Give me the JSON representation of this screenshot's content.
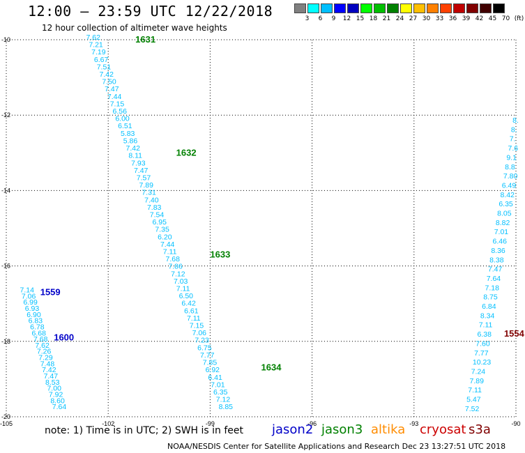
{
  "header": {
    "title": "12:00 – 23:59 UTC 12/22/2018",
    "subtitle": "12 hour collection of altimeter wave heights"
  },
  "legend": {
    "colors": [
      "#808080",
      "#00ffff",
      "#00bfff",
      "#0000ff",
      "#0000bf",
      "#00ff00",
      "#00bf00",
      "#008000",
      "#ffff00",
      "#ffbf00",
      "#ff8000",
      "#ff4000",
      "#c00000",
      "#800000",
      "#400000",
      "#000000"
    ],
    "labels": [
      "",
      "3",
      "6",
      "9",
      "12",
      "15",
      "18",
      "21",
      "24",
      "27",
      "30",
      "33",
      "36",
      "39",
      "42",
      "45",
      "70",
      "(ft)"
    ]
  },
  "footer": {
    "note": "note:  1) Time is in UTC;  2) SWH is in feet",
    "satellites": [
      {
        "name": "jason2",
        "color": "#0000c8"
      },
      {
        "name": "jason3",
        "color": "#008000"
      },
      {
        "name": "altika",
        "color": "#ff8c00"
      },
      {
        "name": "cryosat",
        "color": "#cc0000"
      },
      {
        "name": "s3a",
        "color": "#800000"
      }
    ],
    "credit": "NOAA/NESDIS Center for Satellite Applications and Research     Dec 23 13:27:51 UTC 2018"
  },
  "map": {
    "lon_range": [
      -105,
      -90
    ],
    "lat_range": [
      -20,
      -10
    ],
    "lon_ticks": [
      "-105",
      "-102",
      "-99",
      "-96",
      "-93",
      "-90"
    ],
    "lat_ticks": [
      "-10",
      "-12",
      "-14",
      "-16",
      "-18",
      "-20"
    ],
    "grid": true,
    "tracks": [
      {
        "color": "#00bfff",
        "pass_labels": [
          {
            "text": "1631",
            "color": "#008000",
            "lon": -101.2,
            "lat": -10.0
          },
          {
            "text": "1632",
            "color": "#008000",
            "lon": -100.0,
            "lat": -13.0
          },
          {
            "text": "1633",
            "color": "#008000",
            "lon": -99.0,
            "lat": -15.7
          },
          {
            "text": "1634",
            "color": "#008000",
            "lon": -97.5,
            "lat": -18.7
          }
        ],
        "lon_start": -102.65,
        "lat_start": -10.0,
        "lon_end": -98.75,
        "lat_end": -19.8,
        "values": [
          "7.62",
          "7.21",
          "7.19",
          "6.67",
          "7.51",
          "7.42",
          "7.50",
          "7.47",
          "7.44",
          "7.15",
          "6.56",
          "6.00",
          "6.51",
          "5.83",
          "5.86",
          "7.42",
          "8.11",
          "7.93",
          "7.47",
          "7.57",
          "7.89",
          "7.31",
          "7.40",
          "7.83",
          "7.54",
          "6.95",
          "7.35",
          "6.20",
          "7.44",
          "7.11",
          "7.68",
          "7.86",
          "7.12",
          "7.03",
          "7.11",
          "6.50",
          "6.42",
          "6.61",
          "7.11",
          "7.15",
          "7.06",
          "7.23",
          "6.75",
          "7.77",
          "7.85",
          "6.92",
          "6.41",
          "7.01",
          "6.35",
          "7.12",
          "8.85"
        ]
      },
      {
        "color": "#00bfff",
        "pass_labels": [
          {
            "text": "1559",
            "color": "#0000c8",
            "lon": -104.0,
            "lat": -16.7
          },
          {
            "text": "1600",
            "color": "#0000c8",
            "lon": -103.6,
            "lat": -17.9
          }
        ],
        "lon_start": -104.6,
        "lat_start": -16.7,
        "lon_end": -103.65,
        "lat_end": -19.8,
        "values": [
          "7.14",
          "7.06",
          "6.99",
          "6.93",
          "6.90",
          "6.83",
          "6.78",
          "6.68",
          "7.68",
          "7.62",
          "7.26",
          "7.29",
          "7.48",
          "7.42",
          "7.47",
          "8.53",
          "7.00",
          "7.92",
          "8.60",
          "7.64"
        ]
      },
      {
        "color": "#00bfff",
        "pass_labels": [
          {
            "text": "1554",
            "color": "#800000",
            "lon": -90.35,
            "lat": -17.8
          }
        ],
        "lon_start": -90.1,
        "lat_start": -12.2,
        "lon_end": -91.5,
        "lat_end": -19.85,
        "values": [
          "8.",
          "8.",
          "7.",
          "7.6",
          "9.1",
          "8.8",
          "7.80",
          "6.49",
          "8.42",
          "6.35",
          "8.05",
          "8.82",
          "7.01",
          "6.46",
          "8.36",
          "8.38",
          "7.47",
          "7.64",
          "7.18",
          "8.75",
          "6.84",
          "8.34",
          "7.11",
          "6.38",
          "7.60",
          "7.77",
          "10.23",
          "7.24",
          "7.89",
          "7.11",
          "5.47",
          "7.52"
        ]
      }
    ]
  }
}
